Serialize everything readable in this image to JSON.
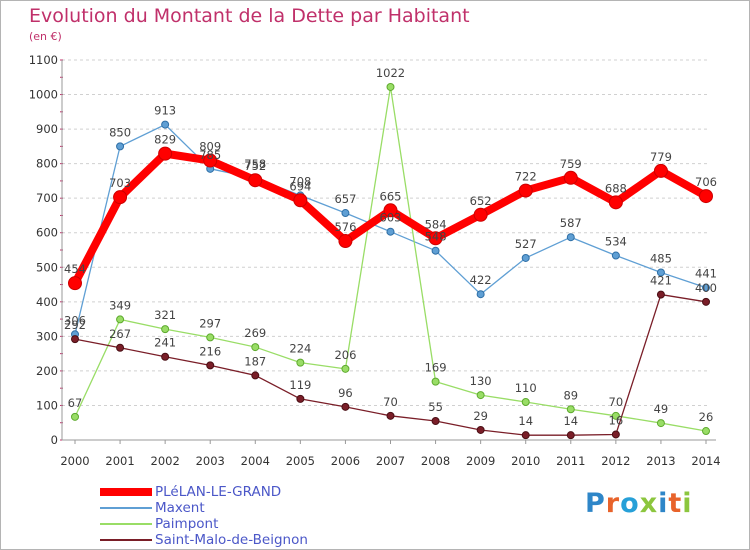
{
  "title": "Evolution du Montant de la Dette par Habitant",
  "unit_label": "(en €)",
  "brand": {
    "logo_text": "Proxiti",
    "letter_colors": [
      "#2e86c8",
      "#e8632b",
      "#27a0d8",
      "#8cc63e",
      "#2e86c8",
      "#e8632b",
      "#8cc63e"
    ]
  },
  "chart_data": {
    "type": "line",
    "title": "Evolution du Montant de la Dette par Habitant",
    "ylabel": "(en €)",
    "xlabel": "",
    "x": [
      "2000",
      "2001",
      "2002",
      "2003",
      "2004",
      "2005",
      "2006",
      "2007",
      "2008",
      "2009",
      "2010",
      "2011",
      "2012",
      "2013",
      "2014"
    ],
    "yticks": [
      "0",
      "100",
      "200",
      "300",
      "400",
      "500",
      "600",
      "700",
      "800",
      "900",
      "1000",
      "1100"
    ],
    "ylim": [
      0,
      1100
    ],
    "grid": "horizontal dashed",
    "legend_position": "bottom-left",
    "series": [
      {
        "name": "PLéLAN-LE-GRAND",
        "color": "#ff0000",
        "values": [
          454,
          703,
          829,
          809,
          752,
          694,
          576,
          665,
          584,
          652,
          722,
          759,
          688,
          779,
          706
        ],
        "labels": [
          "454",
          "703",
          "829",
          "809",
          "752",
          "694",
          "576",
          "665",
          "584",
          "652",
          "722",
          "759",
          "688",
          "779",
          "706"
        ]
      },
      {
        "name": "Maxent",
        "color": "#5f9fd4",
        "values": [
          306,
          850,
          913,
          785,
          758,
          708,
          657,
          603,
          548,
          422,
          527,
          587,
          534,
          485,
          441
        ],
        "labels": [
          "306",
          "850",
          "913",
          "785",
          "758",
          "708",
          "657",
          "603",
          "548",
          "422",
          "527",
          "587",
          "534",
          "485",
          "441"
        ]
      },
      {
        "name": "Paimpont",
        "color": "#99dd66",
        "values": [
          67,
          349,
          321,
          297,
          269,
          224,
          206,
          1022,
          169,
          130,
          110,
          89,
          70,
          49,
          26
        ],
        "labels": [
          "67",
          "349",
          "321",
          "297",
          "269",
          "224",
          "206",
          "1022",
          "169",
          "130",
          "110",
          "89",
          "70",
          "49",
          "26"
        ]
      },
      {
        "name": "Saint-Malo-de-Beignon",
        "color": "#7a1e28",
        "values": [
          292,
          267,
          241,
          216,
          187,
          119,
          96,
          70,
          55,
          29,
          14,
          14,
          16,
          421,
          400
        ],
        "labels": [
          "292",
          "267",
          "241",
          "216",
          "187",
          "119",
          "96",
          "70",
          "55",
          "29",
          "14",
          "14",
          "16",
          "421",
          "400"
        ]
      }
    ]
  }
}
